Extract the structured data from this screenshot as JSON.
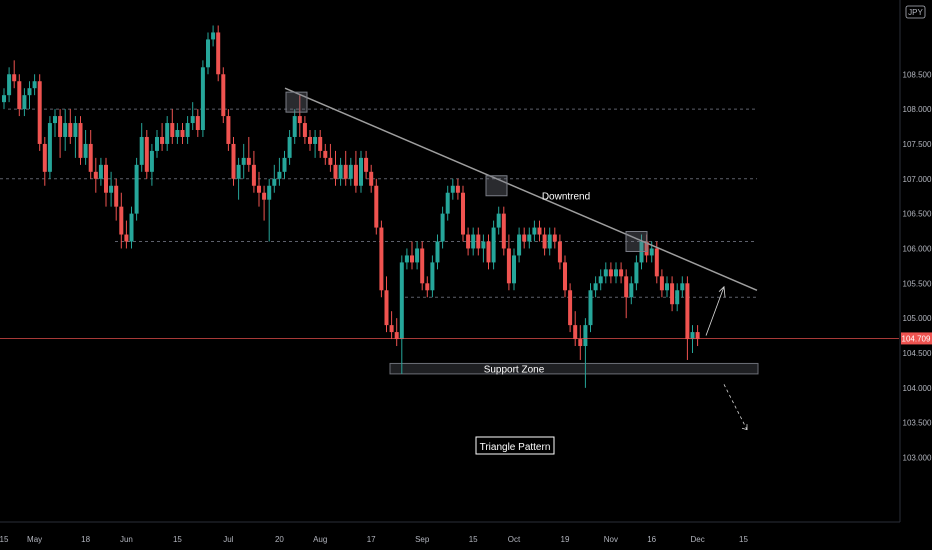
{
  "chart_data": {
    "type": "candlestick",
    "currency_badge": "JPY",
    "y_ticks": [
      108.5,
      108.0,
      107.5,
      107.0,
      106.5,
      106.0,
      105.5,
      105.0,
      104.5,
      104.0,
      103.5,
      103.0
    ],
    "y_tick_labels": [
      "108.500",
      "108.000",
      "107.500",
      "107.000",
      "106.500",
      "106.000",
      "105.500",
      "105.000",
      "104.500",
      "104.000",
      "103.500",
      "103.000"
    ],
    "ylim": [
      102.62,
      109.25
    ],
    "x_tick_labels": [
      "15",
      "May",
      "18",
      "Jun",
      "15",
      "Jul",
      "20",
      "Aug",
      "17",
      "Sep",
      "15",
      "Oct",
      "19",
      "Nov",
      "16",
      "Dec",
      "15"
    ],
    "current_price": 104.709,
    "current_price_label": "104.709",
    "colors": {
      "up": "#26a69a",
      "down": "#ef5350",
      "trendline": "#9e9e9e",
      "price_line": "#ef5350"
    },
    "candles": [
      [
        0,
        108.1,
        108.3,
        108.0,
        108.2
      ],
      [
        1,
        108.2,
        108.6,
        108.1,
        108.5
      ],
      [
        2,
        108.5,
        108.7,
        108.3,
        108.4
      ],
      [
        3,
        108.4,
        108.5,
        107.9,
        108.0
      ],
      [
        4,
        108.0,
        108.3,
        107.9,
        108.2
      ],
      [
        5,
        108.2,
        108.4,
        108.0,
        108.3
      ],
      [
        6,
        108.3,
        108.5,
        108.2,
        108.4
      ],
      [
        7,
        108.4,
        108.5,
        107.4,
        107.5
      ],
      [
        8,
        107.5,
        107.6,
        106.9,
        107.1
      ],
      [
        9,
        107.1,
        107.9,
        107.0,
        107.8
      ],
      [
        10,
        107.8,
        108.0,
        107.6,
        107.9
      ],
      [
        11,
        107.9,
        108.0,
        107.3,
        107.6
      ],
      [
        12,
        107.6,
        108.0,
        107.4,
        107.8
      ],
      [
        13,
        107.8,
        108.0,
        107.5,
        107.6
      ],
      [
        14,
        107.6,
        107.9,
        107.3,
        107.8
      ],
      [
        15,
        107.8,
        107.9,
        107.2,
        107.3
      ],
      [
        16,
        107.3,
        107.7,
        107.2,
        107.5
      ],
      [
        17,
        107.5,
        107.7,
        107.0,
        107.1
      ],
      [
        18,
        107.1,
        107.3,
        106.8,
        107.0
      ],
      [
        19,
        107.0,
        107.3,
        106.9,
        107.2
      ],
      [
        20,
        107.2,
        107.3,
        106.6,
        106.8
      ],
      [
        21,
        106.8,
        107.1,
        106.6,
        106.9
      ],
      [
        22,
        106.9,
        107.0,
        106.4,
        106.6
      ],
      [
        23,
        106.6,
        106.8,
        106.0,
        106.2
      ],
      [
        24,
        106.2,
        106.4,
        106.0,
        106.1
      ],
      [
        25,
        106.1,
        106.6,
        106.0,
        106.5
      ],
      [
        26,
        106.5,
        107.3,
        106.4,
        107.2
      ],
      [
        27,
        107.2,
        107.8,
        107.1,
        107.6
      ],
      [
        28,
        107.6,
        107.7,
        107.0,
        107.1
      ],
      [
        29,
        107.1,
        107.5,
        106.9,
        107.4
      ],
      [
        30,
        107.4,
        107.7,
        107.3,
        107.6
      ],
      [
        31,
        107.6,
        107.8,
        107.4,
        107.5
      ],
      [
        32,
        107.5,
        107.9,
        107.4,
        107.8
      ],
      [
        33,
        107.8,
        108.0,
        107.5,
        107.6
      ],
      [
        34,
        107.6,
        107.8,
        107.5,
        107.7
      ],
      [
        35,
        107.7,
        107.8,
        107.5,
        107.6
      ],
      [
        36,
        107.6,
        107.9,
        107.5,
        107.8
      ],
      [
        37,
        107.8,
        108.1,
        107.7,
        107.9
      ],
      [
        38,
        107.9,
        108.0,
        107.6,
        107.7
      ],
      [
        39,
        107.7,
        108.7,
        107.6,
        108.6
      ],
      [
        40,
        108.6,
        109.1,
        108.5,
        109.0
      ],
      [
        41,
        109.0,
        109.2,
        108.9,
        109.1
      ],
      [
        42,
        109.1,
        109.2,
        108.4,
        108.5
      ],
      [
        43,
        108.5,
        108.6,
        107.8,
        107.9
      ],
      [
        44,
        107.9,
        108.0,
        107.4,
        107.5
      ],
      [
        45,
        107.5,
        107.6,
        106.9,
        107.0
      ],
      [
        46,
        107.0,
        107.3,
        106.7,
        107.2
      ],
      [
        47,
        107.2,
        107.5,
        107.0,
        107.3
      ],
      [
        48,
        107.3,
        107.6,
        107.1,
        107.2
      ],
      [
        49,
        107.2,
        107.4,
        106.8,
        106.9
      ],
      [
        50,
        106.9,
        107.1,
        106.6,
        106.8
      ],
      [
        51,
        106.8,
        106.9,
        106.4,
        106.7
      ],
      [
        52,
        106.7,
        107.0,
        106.1,
        106.9
      ],
      [
        53,
        106.9,
        107.2,
        106.8,
        107.0
      ],
      [
        54,
        107.0,
        107.3,
        106.9,
        107.1
      ],
      [
        55,
        107.1,
        107.4,
        107.0,
        107.3
      ],
      [
        56,
        107.3,
        107.7,
        107.2,
        107.6
      ],
      [
        57,
        107.6,
        108.0,
        107.5,
        107.9
      ],
      [
        58,
        107.9,
        108.2,
        107.6,
        107.8
      ],
      [
        59,
        107.8,
        107.9,
        107.5,
        107.6
      ],
      [
        60,
        107.6,
        107.7,
        107.4,
        107.5
      ],
      [
        61,
        107.5,
        107.7,
        107.3,
        107.6
      ],
      [
        62,
        107.6,
        107.7,
        107.3,
        107.4
      ],
      [
        63,
        107.4,
        107.5,
        107.2,
        107.3
      ],
      [
        64,
        107.3,
        107.5,
        107.1,
        107.2
      ],
      [
        65,
        107.2,
        107.4,
        106.9,
        107.0
      ],
      [
        66,
        107.0,
        107.3,
        106.9,
        107.2
      ],
      [
        67,
        107.2,
        107.4,
        106.9,
        107.0
      ],
      [
        68,
        107.0,
        107.3,
        106.9,
        107.2
      ],
      [
        69,
        107.2,
        107.4,
        106.8,
        106.9
      ],
      [
        70,
        106.9,
        107.4,
        106.8,
        107.3
      ],
      [
        71,
        107.3,
        107.4,
        107.0,
        107.1
      ],
      [
        72,
        107.1,
        107.2,
        106.8,
        106.9
      ],
      [
        73,
        106.9,
        107.0,
        106.2,
        106.3
      ],
      [
        74,
        106.3,
        106.4,
        105.3,
        105.4
      ],
      [
        75,
        105.4,
        105.6,
        104.8,
        104.9
      ],
      [
        76,
        104.9,
        105.1,
        104.7,
        104.8
      ],
      [
        77,
        104.8,
        105.0,
        104.6,
        104.7
      ],
      [
        78,
        104.7,
        105.9,
        104.2,
        105.8
      ],
      [
        79,
        105.8,
        106.0,
        105.7,
        105.9
      ],
      [
        80,
        105.9,
        106.1,
        105.7,
        105.8
      ],
      [
        81,
        105.8,
        106.1,
        105.7,
        106.0
      ],
      [
        82,
        106.0,
        106.1,
        105.4,
        105.5
      ],
      [
        83,
        105.5,
        105.6,
        105.3,
        105.4
      ],
      [
        84,
        105.4,
        105.9,
        105.3,
        105.8
      ],
      [
        85,
        105.8,
        106.2,
        105.7,
        106.1
      ],
      [
        86,
        106.1,
        106.6,
        106.0,
        106.5
      ],
      [
        87,
        106.5,
        106.9,
        106.4,
        106.8
      ],
      [
        88,
        106.8,
        107.0,
        106.7,
        106.9
      ],
      [
        89,
        106.9,
        107.0,
        106.7,
        106.8
      ],
      [
        90,
        106.8,
        106.9,
        106.1,
        106.2
      ],
      [
        91,
        106.2,
        106.3,
        105.9,
        106.0
      ],
      [
        92,
        106.0,
        106.3,
        105.9,
        106.2
      ],
      [
        93,
        106.2,
        106.3,
        105.9,
        106.0
      ],
      [
        94,
        106.0,
        106.2,
        105.8,
        106.1
      ],
      [
        95,
        106.1,
        106.2,
        105.7,
        105.8
      ],
      [
        96,
        105.8,
        106.4,
        105.7,
        106.3
      ],
      [
        97,
        106.3,
        106.6,
        106.2,
        106.5
      ],
      [
        98,
        106.5,
        106.6,
        105.9,
        106.0
      ],
      [
        99,
        106.0,
        106.2,
        105.4,
        105.5
      ],
      [
        100,
        105.5,
        106.0,
        105.4,
        105.9
      ],
      [
        101,
        105.9,
        106.3,
        105.8,
        106.2
      ],
      [
        102,
        106.2,
        106.3,
        106.0,
        106.1
      ],
      [
        103,
        106.1,
        106.3,
        106.0,
        106.2
      ],
      [
        104,
        106.2,
        106.4,
        106.1,
        106.3
      ],
      [
        105,
        106.3,
        106.4,
        106.1,
        106.2
      ],
      [
        106,
        106.2,
        106.3,
        105.9,
        106.0
      ],
      [
        107,
        106.0,
        106.3,
        105.9,
        106.2
      ],
      [
        108,
        106.2,
        106.3,
        106.0,
        106.1
      ],
      [
        109,
        106.1,
        106.2,
        105.7,
        105.8
      ],
      [
        110,
        105.8,
        105.9,
        105.3,
        105.4
      ],
      [
        111,
        105.4,
        105.5,
        104.8,
        104.9
      ],
      [
        112,
        104.9,
        105.1,
        104.6,
        104.7
      ],
      [
        113,
        104.7,
        104.9,
        104.4,
        104.6
      ],
      [
        114,
        104.6,
        105.0,
        104.0,
        104.9
      ],
      [
        115,
        104.9,
        105.5,
        104.8,
        105.4
      ],
      [
        116,
        105.4,
        105.6,
        105.3,
        105.5
      ],
      [
        117,
        105.5,
        105.7,
        105.4,
        105.6
      ],
      [
        118,
        105.6,
        105.8,
        105.5,
        105.7
      ],
      [
        119,
        105.7,
        105.8,
        105.5,
        105.6
      ],
      [
        120,
        105.6,
        105.8,
        105.5,
        105.7
      ],
      [
        121,
        105.7,
        105.8,
        105.5,
        105.6
      ],
      [
        122,
        105.6,
        105.7,
        105.0,
        105.3
      ],
      [
        123,
        105.3,
        105.6,
        105.2,
        105.5
      ],
      [
        124,
        105.5,
        105.9,
        105.4,
        105.8
      ],
      [
        125,
        105.8,
        106.2,
        105.7,
        106.1
      ],
      [
        126,
        106.1,
        106.2,
        105.8,
        105.9
      ],
      [
        127,
        105.9,
        106.1,
        105.8,
        106.0
      ],
      [
        128,
        106.0,
        106.1,
        105.5,
        105.6
      ],
      [
        129,
        105.6,
        105.7,
        105.3,
        105.4
      ],
      [
        130,
        105.4,
        105.6,
        105.3,
        105.5
      ],
      [
        131,
        105.5,
        105.6,
        105.1,
        105.2
      ],
      [
        132,
        105.2,
        105.5,
        105.1,
        105.4
      ],
      [
        133,
        105.4,
        105.6,
        105.3,
        105.5
      ],
      [
        134,
        105.5,
        105.6,
        104.4,
        104.7
      ],
      [
        135,
        104.7,
        104.9,
        104.5,
        104.8
      ],
      [
        136,
        104.8,
        104.9,
        104.6,
        104.7
      ]
    ],
    "x_label_positions": [
      0,
      3,
      8,
      12,
      17,
      22,
      27,
      31,
      36,
      41,
      46,
      50,
      55,
      59.5,
      63.5,
      68,
      72.5
    ]
  },
  "annotations": {
    "downtrend_label": "Downtrend",
    "support_label": "Support Zone",
    "pattern_label": "Triangle Pattern"
  }
}
